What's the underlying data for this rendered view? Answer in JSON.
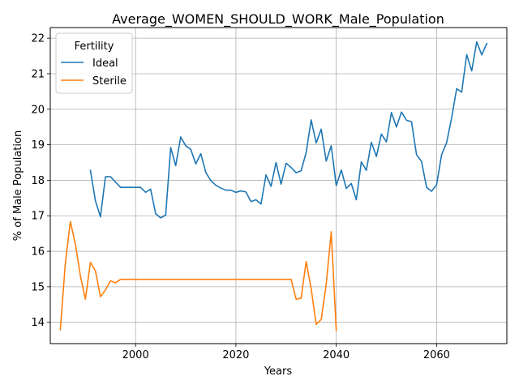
{
  "chart_data": {
    "type": "line",
    "title": "Average_WOMEN_SHOULD_WORK_Male_Population",
    "xlabel": "Years",
    "ylabel": "% of Male Population",
    "xlim": [
      1983,
      2074
    ],
    "ylim": [
      13.4,
      22.3
    ],
    "xticks": [
      2000,
      2020,
      2040,
      2060
    ],
    "yticks": [
      14,
      15,
      16,
      17,
      18,
      19,
      20,
      21,
      22
    ],
    "grid": true,
    "legend": {
      "title": "Fertility",
      "position": "top-left"
    },
    "colors": {
      "Ideal": "#1f77b4",
      "Sterile": "#ff7f0e"
    },
    "series": [
      {
        "name": "Ideal",
        "x": [
          1991,
          1992,
          1993,
          1994,
          1995,
          1996,
          1997,
          1998,
          1999,
          2000,
          2001,
          2002,
          2003,
          2004,
          2005,
          2006,
          2007,
          2008,
          2009,
          2010,
          2011,
          2012,
          2013,
          2014,
          2015,
          2016,
          2017,
          2018,
          2019,
          2020,
          2021,
          2022,
          2023,
          2024,
          2025,
          2026,
          2027,
          2028,
          2029,
          2030,
          2031,
          2032,
          2033,
          2034,
          2035,
          2036,
          2037,
          2038,
          2039,
          2040,
          2041,
          2042,
          2043,
          2044,
          2045,
          2046,
          2047,
          2048,
          2049,
          2050,
          2051,
          2052,
          2053,
          2054,
          2055,
          2056,
          2057,
          2058,
          2059,
          2060,
          2061,
          2062,
          2063,
          2064,
          2065,
          2066,
          2067,
          2068,
          2069,
          2070
        ],
        "values": [
          18.28,
          17.42,
          16.97,
          18.1,
          18.1,
          17.95,
          17.8,
          17.8,
          17.8,
          17.8,
          17.8,
          17.66,
          17.75,
          17.06,
          16.94,
          17.02,
          18.92,
          18.41,
          19.22,
          18.97,
          18.87,
          18.46,
          18.75,
          18.22,
          17.99,
          17.86,
          17.78,
          17.72,
          17.72,
          17.66,
          17.7,
          17.67,
          17.4,
          17.45,
          17.33,
          18.15,
          17.83,
          18.5,
          17.89,
          18.48,
          18.36,
          18.21,
          18.27,
          18.78,
          19.7,
          19.05,
          19.44,
          18.54,
          18.97,
          17.85,
          18.29,
          17.77,
          17.91,
          17.45,
          18.52,
          18.28,
          19.07,
          18.67,
          19.3,
          19.08,
          19.91,
          19.5,
          19.92,
          19.69,
          19.65,
          18.72,
          18.53,
          17.8,
          17.69,
          17.87,
          18.72,
          19.06,
          19.76,
          20.58,
          20.48,
          21.54,
          21.08,
          21.9,
          21.53,
          21.85
        ]
      },
      {
        "name": "Sterile",
        "x": [
          1985,
          1986,
          1987,
          1988,
          1989,
          1990,
          1991,
          1992,
          1993,
          1994,
          1995,
          1996,
          1997,
          1998,
          1999,
          2000,
          2001,
          2002,
          2003,
          2004,
          2005,
          2006,
          2007,
          2008,
          2009,
          2010,
          2011,
          2012,
          2013,
          2014,
          2015,
          2016,
          2017,
          2018,
          2019,
          2020,
          2021,
          2022,
          2023,
          2024,
          2025,
          2026,
          2027,
          2028,
          2029,
          2030,
          2031,
          2032,
          2033,
          2034,
          2035,
          2036,
          2037,
          2038,
          2039,
          2040
        ],
        "values": [
          13.79,
          15.66,
          16.84,
          16.2,
          15.31,
          14.65,
          15.69,
          15.45,
          14.72,
          14.91,
          15.17,
          15.11,
          15.21,
          15.21,
          15.21,
          15.21,
          15.21,
          15.21,
          15.21,
          15.21,
          15.21,
          15.21,
          15.21,
          15.21,
          15.21,
          15.21,
          15.21,
          15.21,
          15.21,
          15.21,
          15.21,
          15.21,
          15.21,
          15.21,
          15.21,
          15.21,
          15.21,
          15.21,
          15.21,
          15.21,
          15.21,
          15.21,
          15.21,
          15.21,
          15.21,
          15.21,
          15.21,
          14.65,
          14.68,
          15.71,
          14.95,
          13.94,
          14.08,
          15.07,
          16.55,
          13.77
        ]
      }
    ]
  }
}
